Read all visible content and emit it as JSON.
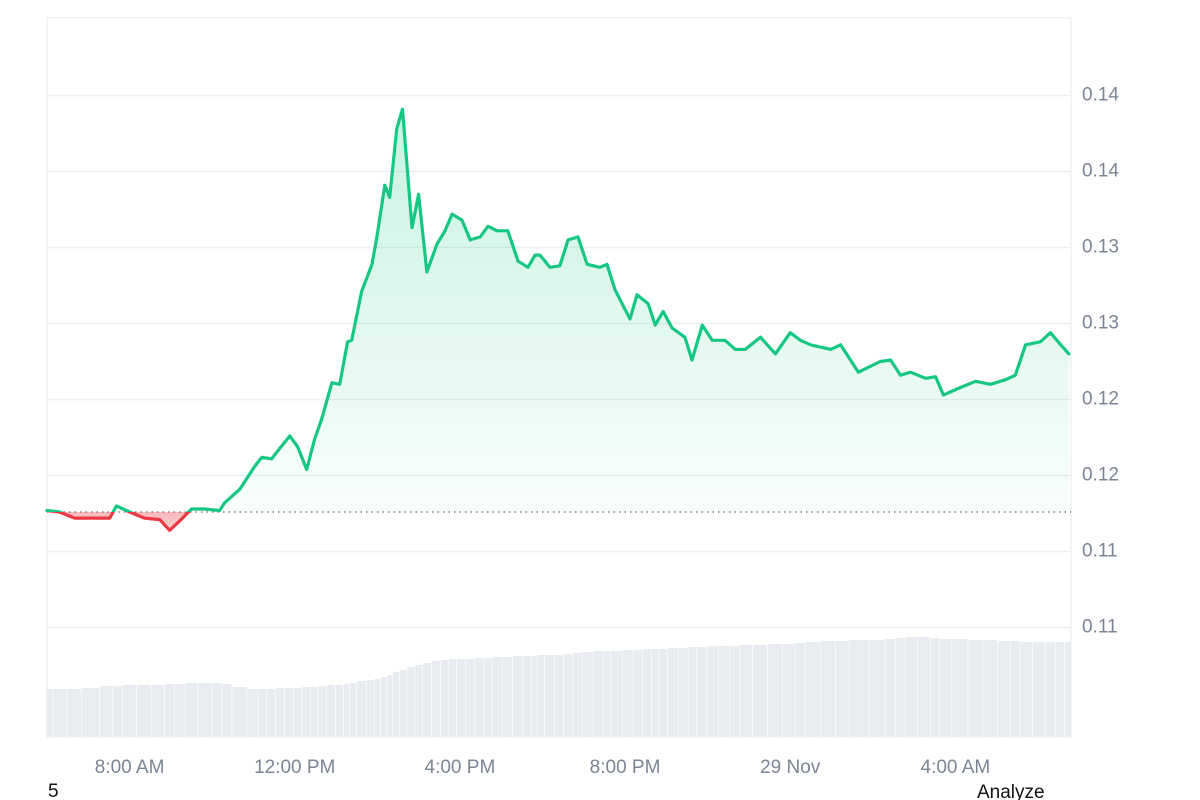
{
  "chart_data": {
    "type": "line",
    "x": [
      6.0,
      6.3,
      6.67,
      7.03,
      7.52,
      7.68,
      8.0,
      8.36,
      8.73,
      8.97,
      9.21,
      9.5,
      9.82,
      10.18,
      10.3,
      10.67,
      11.03,
      11.2,
      11.44,
      11.64,
      11.88,
      12.07,
      12.29,
      12.48,
      12.65,
      12.9,
      13.09,
      13.28,
      13.38,
      13.62,
      13.87,
      13.99,
      14.18,
      14.3,
      14.47,
      14.61,
      14.84,
      15.0,
      15.2,
      15.44,
      15.64,
      15.81,
      16.05,
      16.25,
      16.49,
      16.68,
      16.9,
      17.16,
      17.41,
      17.65,
      17.82,
      17.94,
      18.18,
      18.42,
      18.62,
      18.86,
      19.08,
      19.39,
      19.56,
      19.76,
      20.12,
      20.29,
      20.56,
      20.73,
      20.92,
      21.14,
      21.45,
      21.62,
      21.87,
      22.11,
      22.42,
      22.67,
      22.91,
      23.28,
      23.64,
      24.0,
      24.25,
      24.49,
      24.98,
      25.22,
      25.65,
      26.18,
      26.43,
      26.67,
      26.91,
      27.28,
      27.52,
      27.71,
      28.13,
      28.49,
      28.85,
      29.21,
      29.45,
      29.7,
      30.06,
      30.3,
      30.55,
      30.75
    ],
    "values": [
      0.1127,
      0.1126,
      0.1122,
      0.1122,
      0.1122,
      0.113,
      0.1126,
      0.1122,
      0.1121,
      0.1114,
      0.112,
      0.1128,
      0.1128,
      0.1127,
      0.1132,
      0.1141,
      0.1156,
      0.1162,
      0.1161,
      0.1168,
      0.1176,
      0.1169,
      0.1154,
      0.1174,
      0.1187,
      0.1211,
      0.121,
      0.1238,
      0.1239,
      0.1271,
      0.1289,
      0.1307,
      0.1341,
      0.1333,
      0.1378,
      0.1391,
      0.1313,
      0.1335,
      0.1284,
      0.1302,
      0.1311,
      0.1322,
      0.1318,
      0.1305,
      0.1307,
      0.1314,
      0.1311,
      0.1311,
      0.1291,
      0.1287,
      0.1295,
      0.1295,
      0.1287,
      0.1288,
      0.1305,
      0.1307,
      0.1289,
      0.1287,
      0.1289,
      0.1272,
      0.1253,
      0.1269,
      0.1263,
      0.1249,
      0.1258,
      0.1247,
      0.1241,
      0.1226,
      0.1249,
      0.1239,
      0.1239,
      0.1233,
      0.1233,
      0.1241,
      0.123,
      0.1244,
      0.1239,
      0.1236,
      0.1233,
      0.1236,
      0.1218,
      0.1225,
      0.1226,
      0.1216,
      0.1218,
      0.1214,
      0.1215,
      0.1203,
      0.1208,
      0.1212,
      0.121,
      0.1213,
      0.1216,
      0.1236,
      0.1238,
      0.1244,
      0.1236,
      0.123
    ],
    "volume": [
      48,
      48,
      48,
      49,
      51,
      51,
      52,
      52,
      52,
      53,
      53,
      54,
      54,
      54,
      53,
      50,
      48,
      48,
      48,
      49,
      49,
      49,
      50,
      50,
      51,
      52,
      52,
      53,
      54,
      56,
      57,
      58,
      60,
      62,
      65,
      67,
      70,
      72,
      74,
      76,
      77,
      78,
      78,
      78,
      79,
      79,
      80,
      80,
      81,
      81,
      81,
      82,
      82,
      82,
      83,
      84,
      85,
      86,
      86,
      86,
      87,
      87,
      88,
      88,
      88,
      89,
      89,
      90,
      90,
      91,
      91,
      91,
      92,
      92,
      93,
      93,
      94,
      95,
      96,
      96,
      97,
      97,
      98,
      99,
      100,
      100,
      99,
      98,
      98,
      97,
      97,
      96,
      96,
      95,
      95,
      95,
      95,
      95
    ],
    "volume_ylim": [
      0,
      110
    ],
    "baseline": 0.1126,
    "color_up": "#16c784",
    "color_down": "#ea3943",
    "volume_color": "#e8ecf0",
    "xlim": [
      6.0,
      30.8
    ],
    "xticks": [
      {
        "value": 8,
        "label": "8:00 AM"
      },
      {
        "value": 12,
        "label": "12:00 PM"
      },
      {
        "value": 16,
        "label": "4:00 PM"
      },
      {
        "value": 20,
        "label": "8:00 PM"
      },
      {
        "value": 24,
        "label": "29 Nov"
      },
      {
        "value": 28,
        "label": "4:00 AM"
      }
    ],
    "ylim": [
      0.0978,
      0.1451
    ],
    "yticks": [
      0.14,
      {
        "value": 0.135,
        "label": "0.14"
      },
      0.13,
      {
        "value": 0.125,
        "label": "0.13"
      },
      0.12,
      {
        "value": 0.115,
        "label": "0.12"
      },
      0.11,
      {
        "value": 0.105,
        "label": "0.11"
      }
    ],
    "grid": true
  },
  "footer": {
    "left": "5",
    "right": "Analyze"
  }
}
